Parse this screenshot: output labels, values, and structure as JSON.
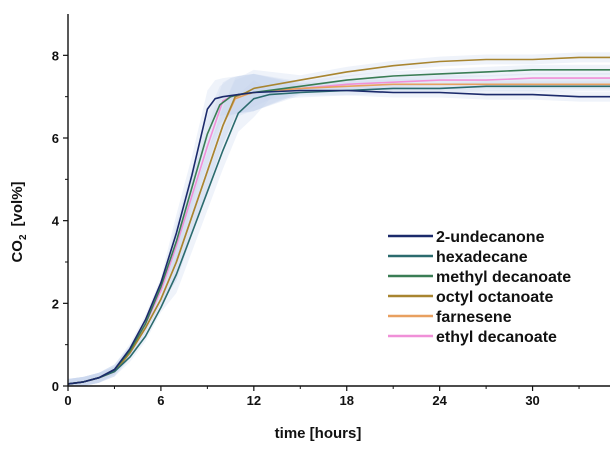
{
  "chart_data": {
    "type": "line",
    "title": "",
    "xlabel": "time   [hours]",
    "ylabel_main": "CO",
    "ylabel_sub": "2",
    "ylabel_unit": "[vol%]",
    "xlim": [
      0,
      35
    ],
    "ylim": [
      0,
      9
    ],
    "xticks": [
      0,
      6,
      12,
      18,
      24,
      30
    ],
    "yticks": [
      0,
      2,
      4,
      6,
      8
    ],
    "grid": false,
    "legend_position": "center-right",
    "series": [
      {
        "name": "2-undecanone",
        "color": "#1b2a6b",
        "x": [
          0,
          1,
          2,
          3,
          4,
          5,
          6,
          7,
          8,
          9,
          9.5,
          10,
          11,
          12,
          15,
          18,
          21,
          24,
          27,
          30,
          33,
          35
        ],
        "y": [
          0.05,
          0.1,
          0.2,
          0.4,
          0.9,
          1.6,
          2.5,
          3.7,
          5.1,
          6.7,
          6.95,
          7.0,
          7.05,
          7.1,
          7.15,
          7.15,
          7.1,
          7.1,
          7.05,
          7.05,
          7.0,
          7.0
        ]
      },
      {
        "name": "hexadecane",
        "color": "#2b6b6e",
        "x": [
          0,
          1,
          2,
          3,
          4,
          5,
          6,
          7,
          8,
          9,
          10,
          11,
          12,
          13,
          15,
          18,
          21,
          24,
          27,
          30,
          33,
          35
        ],
        "y": [
          0.05,
          0.1,
          0.2,
          0.35,
          0.7,
          1.2,
          1.9,
          2.7,
          3.7,
          4.7,
          5.7,
          6.6,
          6.95,
          7.05,
          7.1,
          7.15,
          7.2,
          7.2,
          7.25,
          7.25,
          7.25,
          7.25
        ]
      },
      {
        "name": "methyl decanoate",
        "color": "#3a7d55",
        "x": [
          0,
          1,
          2,
          3,
          4,
          5,
          6,
          7,
          8,
          9,
          9.8,
          10.5,
          11,
          12,
          15,
          18,
          21,
          24,
          27,
          30,
          33,
          35
        ],
        "y": [
          0.05,
          0.1,
          0.2,
          0.4,
          0.85,
          1.5,
          2.4,
          3.5,
          4.8,
          6.1,
          6.8,
          7.0,
          7.05,
          7.1,
          7.25,
          7.4,
          7.5,
          7.55,
          7.6,
          7.65,
          7.65,
          7.65
        ]
      },
      {
        "name": "octyl octanoate",
        "color": "#a88530",
        "x": [
          0,
          1,
          2,
          3,
          4,
          5,
          6,
          7,
          8,
          9,
          10,
          10.8,
          11.5,
          12,
          15,
          18,
          21,
          24,
          27,
          30,
          33,
          35
        ],
        "y": [
          0.05,
          0.1,
          0.2,
          0.35,
          0.8,
          1.4,
          2.1,
          3.0,
          4.1,
          5.2,
          6.3,
          7.0,
          7.1,
          7.2,
          7.4,
          7.6,
          7.75,
          7.85,
          7.9,
          7.9,
          7.95,
          7.95
        ]
      },
      {
        "name": "farnesene",
        "color": "#e8a060",
        "x": [
          0,
          1,
          2,
          3,
          4,
          5,
          6,
          7,
          8,
          9,
          10,
          10.8,
          11.5,
          12,
          15,
          18,
          21,
          24,
          27,
          30,
          33,
          35
        ],
        "y": [
          0.05,
          0.1,
          0.2,
          0.35,
          0.8,
          1.4,
          2.1,
          3.0,
          4.1,
          5.2,
          6.3,
          6.95,
          7.05,
          7.1,
          7.2,
          7.25,
          7.3,
          7.3,
          7.3,
          7.3,
          7.3,
          7.3
        ]
      },
      {
        "name": "ethyl decanoate",
        "color": "#f090d8",
        "x": [
          0,
          1,
          2,
          3,
          4,
          5,
          6,
          7,
          8,
          9,
          10,
          10.5,
          11,
          12,
          15,
          18,
          21,
          24,
          27,
          30,
          33,
          35
        ],
        "y": [
          0.05,
          0.1,
          0.2,
          0.4,
          0.85,
          1.5,
          2.3,
          3.4,
          4.6,
          5.8,
          6.9,
          7.0,
          7.05,
          7.1,
          7.2,
          7.3,
          7.35,
          7.4,
          7.4,
          7.45,
          7.45,
          7.45
        ]
      }
    ]
  }
}
